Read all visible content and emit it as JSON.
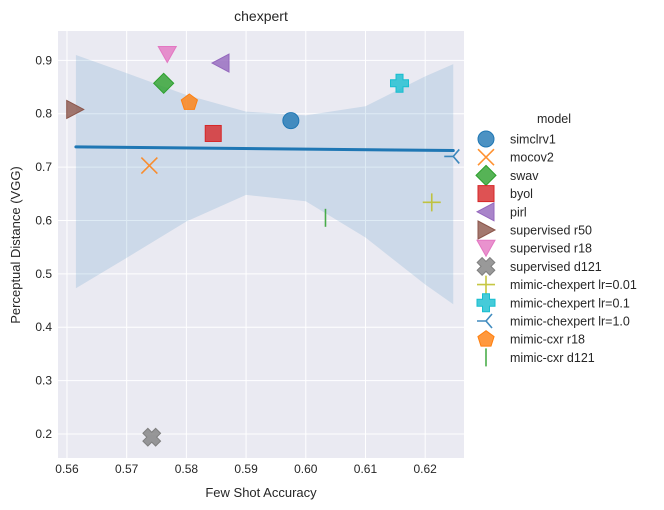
{
  "chart_data": {
    "type": "scatter",
    "title": "chexpert",
    "xlabel": "Few Shot Accuracy",
    "ylabel": "Perceptual Distance (VGG)",
    "xlim": [
      0.5585,
      0.6265
    ],
    "ylim": [
      0.155,
      0.955
    ],
    "xticks": [
      "0.56",
      "0.57",
      "0.58",
      "0.59",
      "0.60",
      "0.61",
      "0.62"
    ],
    "yticks": [
      "0.2",
      "0.3",
      "0.4",
      "0.5",
      "0.6",
      "0.7",
      "0.8",
      "0.9"
    ],
    "grid": true,
    "background": "#eaeaf2",
    "legend_title": "model",
    "legend_position": "right",
    "series": [
      {
        "name": "simclrv1",
        "marker": "circle",
        "color": "#1f77b4",
        "x": 0.5975,
        "y": 0.787
      },
      {
        "name": "mocov2",
        "marker": "x",
        "color": "#ff7f0e",
        "x": 0.5738,
        "y": 0.703
      },
      {
        "name": "swav",
        "marker": "diamond",
        "color": "#2ca02c",
        "x": 0.5762,
        "y": 0.857
      },
      {
        "name": "byol",
        "marker": "square",
        "color": "#d62728",
        "x": 0.5845,
        "y": 0.763
      },
      {
        "name": "pirl",
        "marker": "triangle-left",
        "color": "#9467bd",
        "x": 0.5858,
        "y": 0.895
      },
      {
        "name": "supervised r50",
        "marker": "triangle-right",
        "color": "#8c564b",
        "x": 0.5613,
        "y": 0.808
      },
      {
        "name": "supervised r18",
        "marker": "triangle-down",
        "color": "#e377c2",
        "x": 0.5768,
        "y": 0.911
      },
      {
        "name": "supervised d121",
        "marker": "x-filled",
        "color": "#7f7f7f",
        "x": 0.5742,
        "y": 0.194
      },
      {
        "name": "mimic-chexpert lr=0.01",
        "marker": "plus",
        "color": "#bcbd22",
        "x": 0.6211,
        "y": 0.634
      },
      {
        "name": "mimic-chexpert lr=0.1",
        "marker": "plus-filled",
        "color": "#17becf",
        "x": 0.6157,
        "y": 0.857
      },
      {
        "name": "mimic-chexpert lr=1.0",
        "marker": "tri-left",
        "color": "#1f77b4",
        "x": 0.6247,
        "y": 0.72
      },
      {
        "name": "mimic-cxr r18",
        "marker": "pentagon",
        "color": "#ff7f0e",
        "x": 0.5805,
        "y": 0.821
      },
      {
        "name": "mimic-cxr d121",
        "marker": "vline",
        "color": "#2ca02c",
        "x": 0.6033,
        "y": 0.605
      }
    ],
    "regression": {
      "color": "#1f77b4",
      "band_color": "#1f77b4",
      "line": [
        [
          0.5615,
          0.738
        ],
        [
          0.6247,
          0.731
        ]
      ],
      "band_upper": [
        [
          0.5615,
          0.91
        ],
        [
          0.57,
          0.876
        ],
        [
          0.58,
          0.835
        ],
        [
          0.59,
          0.804
        ],
        [
          0.6,
          0.797
        ],
        [
          0.61,
          0.814
        ],
        [
          0.62,
          0.87
        ],
        [
          0.6247,
          0.893
        ]
      ],
      "band_lower": [
        [
          0.5615,
          0.473
        ],
        [
          0.57,
          0.53
        ],
        [
          0.58,
          0.598
        ],
        [
          0.59,
          0.648
        ],
        [
          0.6,
          0.636
        ],
        [
          0.61,
          0.568
        ],
        [
          0.62,
          0.48
        ],
        [
          0.6247,
          0.443
        ]
      ]
    }
  }
}
